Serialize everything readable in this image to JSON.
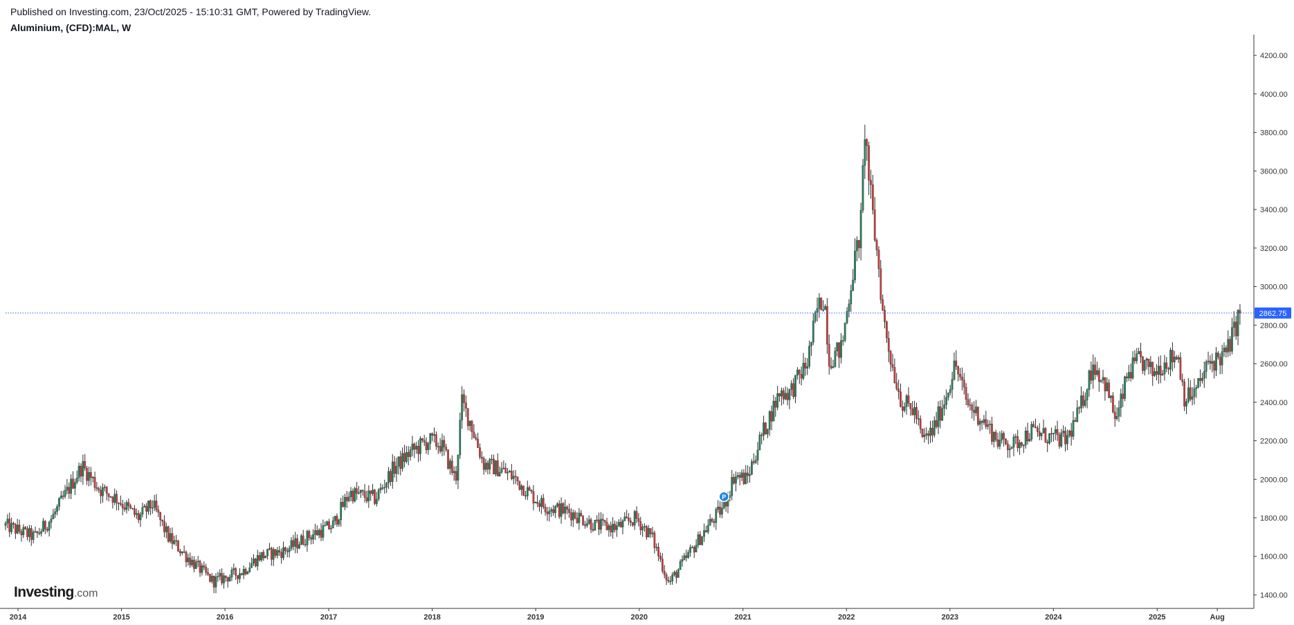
{
  "header": {
    "published": "Published on Investing.com, 23/Oct/2025 - 15:10:31 GMT, Powered by TradingView.",
    "symbol": "Aluminium, (CFD):MAL, W"
  },
  "logo": {
    "main": "Investing",
    "suffix": ".com"
  },
  "colors": {
    "up": "#26805a",
    "down": "#c93c3c",
    "price_line": "#2962ff",
    "axis": "#333333"
  },
  "chart_data": {
    "type": "candlestick",
    "title": "Aluminium, (CFD):MAL, W",
    "ylim": [
      1330,
      4290
    ],
    "y_ticks": [
      "4200.00",
      "4000.00",
      "3800.00",
      "3600.00",
      "3400.00",
      "3200.00",
      "3000.00",
      "2800.00",
      "2600.00",
      "2400.00",
      "2200.00",
      "2000.00",
      "1800.00",
      "1600.00",
      "1400.00"
    ],
    "x_range": [
      "2013-11-18",
      "2025-12-08"
    ],
    "x_ticks": [
      {
        "date": "2014-01-01",
        "label": "2014"
      },
      {
        "date": "2015-01-01",
        "label": "2015"
      },
      {
        "date": "2016-01-01",
        "label": "2016"
      },
      {
        "date": "2017-01-01",
        "label": "2017"
      },
      {
        "date": "2018-01-01",
        "label": "2018"
      },
      {
        "date": "2019-01-01",
        "label": "2019"
      },
      {
        "date": "2020-01-01",
        "label": "2020"
      },
      {
        "date": "2021-01-01",
        "label": "2021"
      },
      {
        "date": "2022-01-01",
        "label": "2022"
      },
      {
        "date": "2023-01-01",
        "label": "2023"
      },
      {
        "date": "2024-01-01",
        "label": "2024"
      },
      {
        "date": "2025-01-01",
        "label": "2025"
      },
      {
        "date": "2025-08-01",
        "label": "Aug"
      }
    ],
    "last_price": 2862.75,
    "last_price_label": "2862.75",
    "marker": {
      "date": "2020-10-26",
      "price": 1910,
      "label": "P"
    },
    "trend": [
      [
        "2013-11-18",
        1760
      ],
      [
        "2014-03-01",
        1700
      ],
      [
        "2014-05-01",
        1800
      ],
      [
        "2014-08-15",
        2070
      ],
      [
        "2014-10-15",
        1950
      ],
      [
        "2014-12-15",
        1900
      ],
      [
        "2015-03-01",
        1800
      ],
      [
        "2015-04-20",
        1870
      ],
      [
        "2015-06-15",
        1700
      ],
      [
        "2015-09-01",
        1580
      ],
      [
        "2015-11-20",
        1470
      ],
      [
        "2016-03-01",
        1520
      ],
      [
        "2016-05-01",
        1600
      ],
      [
        "2016-08-01",
        1630
      ],
      [
        "2016-10-15",
        1700
      ],
      [
        "2017-01-15",
        1760
      ],
      [
        "2017-03-15",
        1930
      ],
      [
        "2017-06-15",
        1900
      ],
      [
        "2017-08-15",
        2050
      ],
      [
        "2017-10-15",
        2140
      ],
      [
        "2017-12-20",
        2200
      ],
      [
        "2018-02-01",
        2180
      ],
      [
        "2018-03-25",
        2000
      ],
      [
        "2018-04-15",
        2400
      ],
      [
        "2018-05-15",
        2300
      ],
      [
        "2018-07-01",
        2080
      ],
      [
        "2018-09-01",
        2050
      ],
      [
        "2018-10-15",
        2010
      ],
      [
        "2018-12-15",
        1920
      ],
      [
        "2019-02-01",
        1860
      ],
      [
        "2019-05-01",
        1830
      ],
      [
        "2019-08-01",
        1760
      ],
      [
        "2019-10-15",
        1750
      ],
      [
        "2019-12-20",
        1800
      ],
      [
        "2020-02-15",
        1700
      ],
      [
        "2020-04-15",
        1460
      ],
      [
        "2020-06-01",
        1560
      ],
      [
        "2020-09-01",
        1760
      ],
      [
        "2020-10-26",
        1860
      ],
      [
        "2020-12-01",
        2020
      ],
      [
        "2021-01-15",
        2000
      ],
      [
        "2021-03-01",
        2200
      ],
      [
        "2021-05-10",
        2450
      ],
      [
        "2021-06-15",
        2450
      ],
      [
        "2021-08-15",
        2600
      ],
      [
        "2021-09-20",
        2880
      ],
      [
        "2021-10-15",
        2950
      ],
      [
        "2021-11-01",
        2620
      ],
      [
        "2021-12-15",
        2680
      ],
      [
        "2022-01-20",
        3050
      ],
      [
        "2022-02-20",
        3300
      ],
      [
        "2022-03-07",
        3820
      ],
      [
        "2022-03-25",
        3500
      ],
      [
        "2022-04-10",
        3280
      ],
      [
        "2022-04-25",
        3100
      ],
      [
        "2022-05-10",
        2850
      ],
      [
        "2022-06-10",
        2600
      ],
      [
        "2022-07-15",
        2400
      ],
      [
        "2022-09-01",
        2350
      ],
      [
        "2022-09-25",
        2200
      ],
      [
        "2022-11-01",
        2250
      ],
      [
        "2022-12-15",
        2420
      ],
      [
        "2023-01-20",
        2600
      ],
      [
        "2023-03-01",
        2400
      ],
      [
        "2023-05-01",
        2300
      ],
      [
        "2023-06-20",
        2200
      ],
      [
        "2023-08-15",
        2180
      ],
      [
        "2023-10-15",
        2250
      ],
      [
        "2023-12-15",
        2220
      ],
      [
        "2024-02-15",
        2200
      ],
      [
        "2024-04-01",
        2350
      ],
      [
        "2024-05-20",
        2600
      ],
      [
        "2024-07-01",
        2500
      ],
      [
        "2024-08-10",
        2300
      ],
      [
        "2024-09-20",
        2550
      ],
      [
        "2024-11-01",
        2620
      ],
      [
        "2024-12-15",
        2550
      ],
      [
        "2025-01-20",
        2600
      ],
      [
        "2025-03-15",
        2650
      ],
      [
        "2025-04-08",
        2420
      ],
      [
        "2025-05-15",
        2450
      ],
      [
        "2025-07-01",
        2600
      ],
      [
        "2025-09-01",
        2650
      ],
      [
        "2025-10-20",
        2862.75
      ]
    ]
  }
}
